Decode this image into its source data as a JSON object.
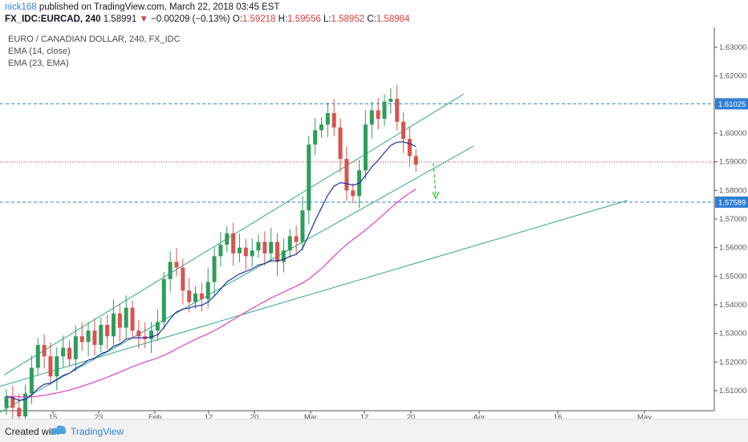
{
  "header": {
    "author": "nick168",
    "published": "published on TradingView.com, March 22, 2018 03:45 EST",
    "symbol": "FX_IDC:EURCAD, 240",
    "last": "1.58991",
    "change": "−0.00209 (−0.13%)",
    "o_label": "O:",
    "o": "1.59218",
    "h_label": "H:",
    "h": "1.59556",
    "l_label": "L:",
    "l": "1.58952",
    "c_label": "C:",
    "c": "1.58984"
  },
  "legend": {
    "title": "EURO / CANADIAN DOLLAR, 240, FX_IDC",
    "ema1": "EMA (14, close)",
    "ema2": "EMA (23, EMA)"
  },
  "footer": {
    "created": "Created with",
    "brand": "TradingView"
  },
  "colors": {
    "up": "#2e9d5b",
    "down": "#d9534f",
    "ema14": "#1f2fa8",
    "ema23": "#e040c8",
    "trendline": "#2fa787",
    "hline": "#2f7fd6",
    "current": "#d93636",
    "arrow": "#3dd13d"
  },
  "chart_data": {
    "type": "candlestick",
    "y_range": [
      1.503,
      1.637
    ],
    "y_ticks": [
      "1.63000",
      "1.62000",
      "1.61000",
      "1.60000",
      "1.59000",
      "1.58000",
      "1.57000",
      "1.56000",
      "1.55000",
      "1.54000",
      "1.53000",
      "1.52000",
      "1.51000"
    ],
    "x_ticks": [
      "15",
      "23",
      "Feb",
      "12",
      "20",
      "Mar",
      "12",
      "20",
      "Apr",
      "16",
      "May"
    ],
    "horizontal_levels": [
      {
        "label": "1.61025",
        "value": 1.61025
      },
      {
        "label": "1.57589",
        "value": 1.57589
      }
    ],
    "current_price": 1.58991,
    "closes": [
      1.508,
      1.504,
      1.501,
      1.509,
      1.518,
      1.526,
      1.522,
      1.515,
      1.522,
      1.525,
      1.521,
      1.529,
      1.527,
      1.531,
      1.526,
      1.533,
      1.529,
      1.537,
      1.532,
      1.539,
      1.531,
      1.529,
      1.528,
      1.531,
      1.534,
      1.549,
      1.555,
      1.553,
      1.545,
      1.541,
      1.544,
      1.542,
      1.548,
      1.557,
      1.561,
      1.565,
      1.558,
      1.56,
      1.557,
      1.559,
      1.562,
      1.558,
      1.562,
      1.555,
      1.559,
      1.564,
      1.562,
      1.573,
      1.596,
      1.601,
      1.603,
      1.607,
      1.602,
      1.591,
      1.58,
      1.578,
      1.587,
      1.603,
      1.608,
      1.605,
      1.611,
      1.612,
      1.604,
      1.598,
      1.592,
      1.589
    ]
  }
}
